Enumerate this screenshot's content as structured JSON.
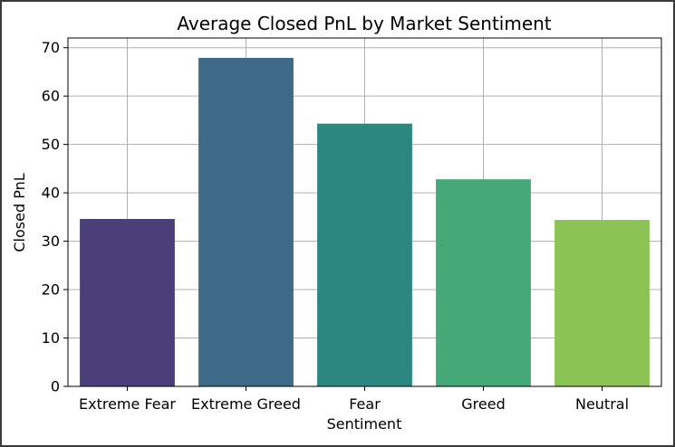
{
  "chart_data": {
    "type": "bar",
    "title": "Average Closed PnL by Market Sentiment",
    "xlabel": "Sentiment",
    "ylabel": "Closed PnL",
    "categories": [
      "Extreme Fear",
      "Extreme Greed",
      "Fear",
      "Greed",
      "Neutral"
    ],
    "values": [
      34.6,
      67.9,
      54.3,
      42.8,
      34.4
    ],
    "colors": [
      "#4b3f7a",
      "#3e6a87",
      "#2b8780",
      "#45a877",
      "#8bc354"
    ],
    "ylim": [
      0,
      72
    ],
    "yticks": [
      0,
      10,
      20,
      30,
      40,
      50,
      60,
      70
    ],
    "grid": true
  }
}
